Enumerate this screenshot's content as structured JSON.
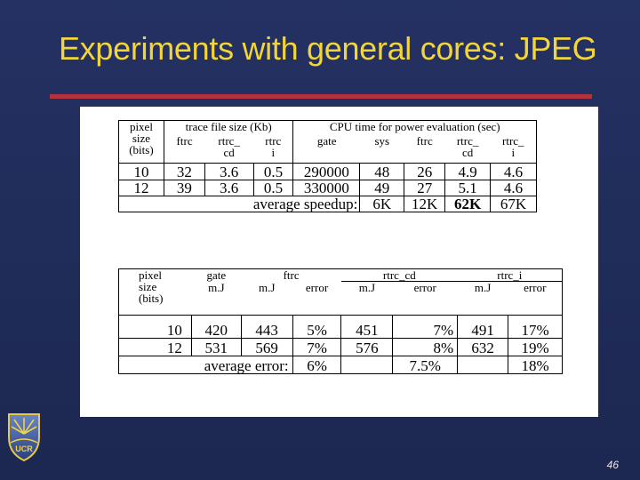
{
  "slide": {
    "title": "Experiments with general cores: JPEG",
    "page_number": "46",
    "logo_text": "UCR"
  },
  "table1": {
    "col_pixel": [
      "pixel",
      "size",
      "(bits)"
    ],
    "group_trace": "trace file size (Kb)",
    "group_cpu": "CPU time for power evaluation (sec)",
    "sub": {
      "ftrc": "ftrc",
      "rtrc_cd": [
        "rtrc_",
        "cd"
      ],
      "rtrc_i": [
        "rtrc",
        "i"
      ],
      "gate": "gate",
      "sys": "sys",
      "ftrc2": "ftrc",
      "rtrc_cd2": [
        "rtrc_",
        "cd"
      ],
      "rtrc_i2": [
        "rtrc_",
        "i"
      ]
    },
    "rows": [
      [
        "10",
        "32",
        "3.6",
        "0.5",
        "290000",
        "48",
        "26",
        "4.9",
        "4.6"
      ],
      [
        "12",
        "39",
        "3.6",
        "0.5",
        "330000",
        "49",
        "27",
        "5.1",
        "4.6"
      ]
    ],
    "avg_label": "average speedup:",
    "avg": [
      "6K",
      "12K",
      "62K",
      "67K"
    ]
  },
  "table2": {
    "col_pixel": [
      "pixel",
      "size",
      "(bits)"
    ],
    "group_gate": "gate",
    "group_ftrc": "ftrc",
    "group_rtrc_cd": "rtrc_cd",
    "group_rtrc_i": "rtrc_i",
    "mj": "m.J",
    "error": "error",
    "rows": [
      [
        "10",
        "420",
        "443",
        "5%",
        "451",
        "7%",
        "491",
        "17%"
      ],
      [
        "12",
        "531",
        "569",
        "7%",
        "576",
        "8%",
        "632",
        "19%"
      ]
    ],
    "avg_label": "average error:",
    "avg": [
      "6%",
      "7.5%",
      "18%"
    ]
  }
}
